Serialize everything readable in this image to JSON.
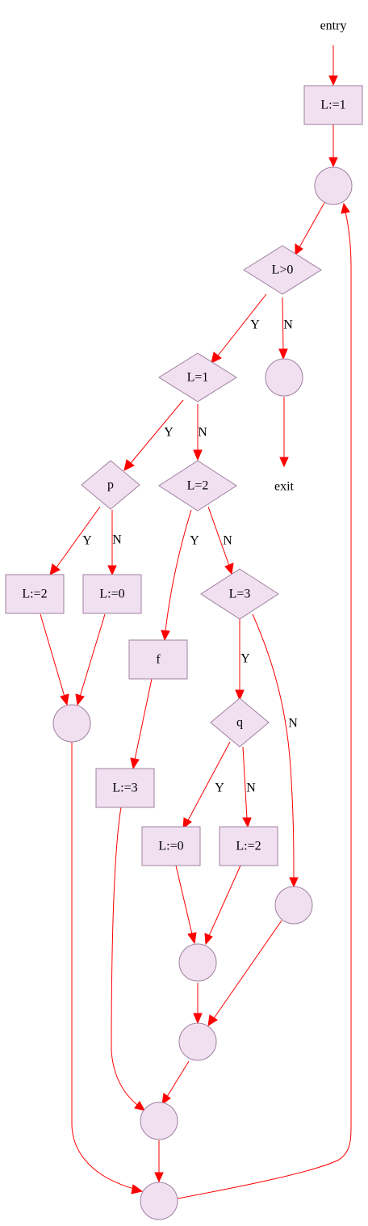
{
  "diagram": {
    "labels": {
      "entry": "entry",
      "exit": "exit",
      "init": "L:=1",
      "cond_gt0": "L>0",
      "cond_eq1": "L=1",
      "cond_p": "p",
      "cond_eq2": "L=2",
      "set_l2_left": "L:=2",
      "set_l0_left": "L:=0",
      "cond_eq3": "L=3",
      "call_f": "f",
      "cond_q": "q",
      "set_l3": "L:=3",
      "set_l0_q": "L:=0",
      "set_l2_q": "L:=2"
    },
    "edge_labels": {
      "gt0_yes": "Y",
      "gt0_no": "N",
      "eq1_yes": "Y",
      "eq1_no": "N",
      "p_yes": "Y",
      "p_no": "N",
      "eq2_yes": "Y",
      "eq2_no": "N",
      "eq3_yes": "Y",
      "eq3_no": "N",
      "q_yes": "Y",
      "q_no": "N"
    },
    "colors": {
      "node_fill": "#f0e0f0",
      "node_stroke": "#a080a0",
      "edge": "#ff0000"
    }
  }
}
